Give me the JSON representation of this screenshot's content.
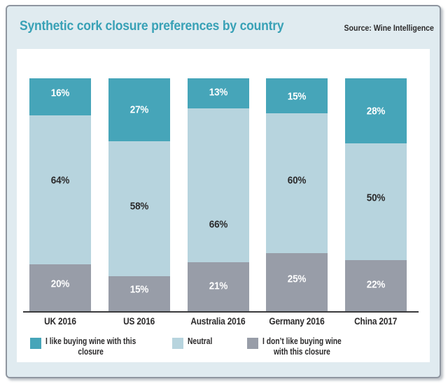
{
  "header": {
    "title": "Synthetic cork closure preferences by country",
    "source": "Source: Wine Intelligence"
  },
  "colors": {
    "like": "#46a5b9",
    "neutral": "#b7d4de",
    "dislike": "#989da8",
    "title": "#38a1b6",
    "text_dark": "#2b2a2b",
    "card_bg": "#e0ebf0",
    "card_border": "#8f96a0",
    "axis": "#3a3a3c",
    "panel_bg": "#ffffff"
  },
  "chart_data": {
    "type": "bar",
    "stacked": true,
    "unit": "%",
    "title": "Synthetic cork closure preferences by country",
    "categories": [
      "UK 2016",
      "US 2016",
      "Australia 2016",
      "Germany 2016",
      "China 2017"
    ],
    "series": [
      {
        "name": "I like buying wine with this closure",
        "key": "like",
        "values": [
          16,
          27,
          13,
          15,
          28
        ],
        "label_color": "#ffffff",
        "label_dy": [
          -6,
          0,
          -2,
          1,
          0
        ]
      },
      {
        "name": "Neutral",
        "key": "neutral",
        "values": [
          64,
          58,
          66,
          60,
          50
        ],
        "label_color": "#2b2a2b",
        "label_dy": [
          -14,
          -3,
          56,
          -4,
          -5
        ]
      },
      {
        "name": "I don’t like buying wine with this closure",
        "key": "dislike",
        "values": [
          20,
          15,
          21,
          25,
          22
        ],
        "label_color": "#ffffff",
        "label_dy": [
          -6,
          -6,
          -1,
          -4,
          -1
        ]
      }
    ],
    "ylim": [
      0,
      100
    ],
    "grid": false,
    "legend_position": "bottom"
  },
  "legend": {
    "items": [
      {
        "color_key": "like",
        "lines": [
          "I like buying wine with this",
          "closure"
        ]
      },
      {
        "color_key": "neutral",
        "lines": [
          "Neutral"
        ]
      },
      {
        "color_key": "dislike",
        "lines": [
          "I don’t like buying wine",
          "with this closure"
        ]
      }
    ]
  }
}
